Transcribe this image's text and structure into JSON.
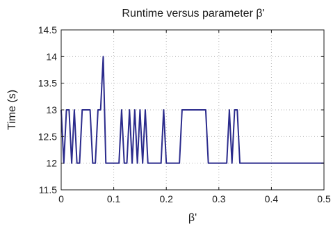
{
  "chart_data": {
    "type": "line",
    "title": "Runtime versus parameter β'",
    "xlabel": "β'",
    "ylabel": "Time (s)",
    "xlim": [
      0,
      0.5
    ],
    "ylim": [
      11.5,
      14.5
    ],
    "xticks": [
      "0",
      "0.1",
      "0.2",
      "0.3",
      "0.4",
      "0.5"
    ],
    "yticks": [
      "11.5",
      "12",
      "12.5",
      "13",
      "13.5",
      "14",
      "14.5"
    ],
    "grid": true,
    "series": [
      {
        "color": "#2b2b8c",
        "x": [
          0,
          0.005,
          0.01,
          0.015,
          0.02,
          0.025,
          0.03,
          0.035,
          0.04,
          0.045,
          0.05,
          0.055,
          0.06,
          0.065,
          0.07,
          0.075,
          0.08,
          0.085,
          0.09,
          0.095,
          0.1,
          0.105,
          0.11,
          0.115,
          0.12,
          0.125,
          0.13,
          0.135,
          0.14,
          0.145,
          0.15,
          0.155,
          0.16,
          0.165,
          0.17,
          0.175,
          0.18,
          0.185,
          0.19,
          0.195,
          0.2,
          0.205,
          0.21,
          0.215,
          0.22,
          0.225,
          0.23,
          0.235,
          0.24,
          0.245,
          0.25,
          0.255,
          0.26,
          0.265,
          0.27,
          0.275,
          0.28,
          0.285,
          0.29,
          0.295,
          0.3,
          0.305,
          0.31,
          0.315,
          0.32,
          0.325,
          0.33,
          0.335,
          0.34,
          0.345,
          0.35,
          0.355,
          0.36,
          0.365,
          0.37,
          0.375,
          0.38,
          0.385,
          0.39,
          0.395,
          0.4,
          0.405,
          0.41,
          0.415,
          0.42,
          0.425,
          0.43,
          0.435,
          0.44,
          0.445,
          0.45,
          0.455,
          0.46,
          0.465,
          0.47,
          0.475,
          0.48,
          0.485,
          0.49,
          0.495,
          0.5
        ],
        "y": [
          13,
          12,
          13,
          13,
          12,
          13,
          12,
          12,
          13,
          13,
          13,
          13,
          12,
          12,
          13,
          13,
          14,
          12,
          12,
          12,
          12,
          12,
          12,
          13,
          12,
          12,
          13,
          12,
          13,
          12,
          13,
          12,
          13,
          12,
          12,
          12,
          12,
          12,
          12,
          13,
          12,
          12,
          12,
          12,
          12,
          12,
          13,
          13,
          13,
          13,
          13,
          13,
          13,
          13,
          13,
          13,
          12,
          12,
          12,
          12,
          12,
          12,
          12,
          12,
          13,
          12,
          13,
          13,
          12,
          12,
          12,
          12,
          12,
          12,
          12,
          12,
          12,
          12,
          12,
          12,
          12,
          12,
          12,
          12,
          12,
          12,
          12,
          12,
          12,
          12,
          12,
          12,
          12,
          12,
          12,
          12,
          12,
          12,
          12,
          12,
          12
        ]
      }
    ]
  }
}
